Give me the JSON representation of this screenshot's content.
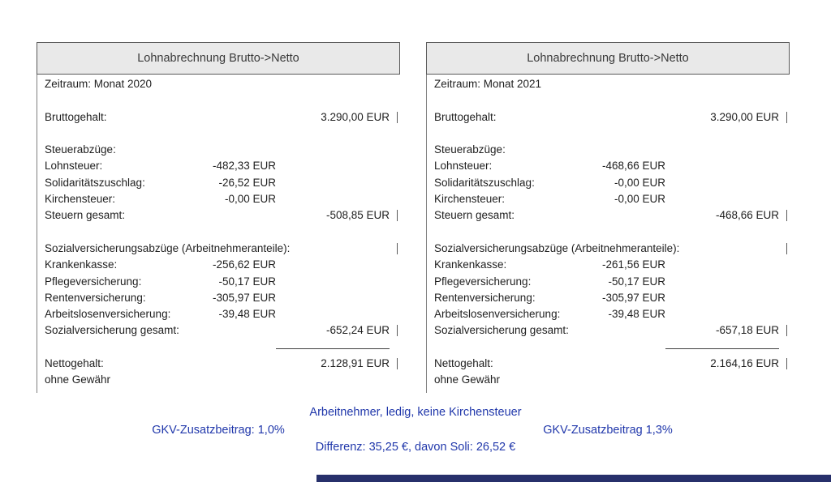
{
  "colors": {
    "accent_blue": "#2138ab",
    "bar_navy": "#27306b",
    "header_bg": "#e9e9e9",
    "border_gray": "#595959"
  },
  "panels": [
    {
      "title": "Lohnabrechnung Brutto->Netto",
      "rows": [
        {
          "label": "Zeitraum: Monat 2020"
        },
        {
          "spacer": true
        },
        {
          "label": "Bruttogehalt:",
          "total": "3.290,00 EUR",
          "tick": true
        },
        {
          "spacer": true
        },
        {
          "label": "Steuerabzüge:"
        },
        {
          "label": "Lohnsteuer:",
          "mid": "-482,33 EUR"
        },
        {
          "label": "Solidaritätszuschlag:",
          "mid": "-26,52 EUR"
        },
        {
          "label": "Kirchensteuer:",
          "mid": "-0,00 EUR"
        },
        {
          "label": "Steuern gesamt:",
          "total": "-508,85 EUR",
          "tick": true
        },
        {
          "spacer": true
        },
        {
          "label": "Sozialversicherungsabzüge (Arbeitnehmeranteile):",
          "tick": true
        },
        {
          "label": "Krankenkasse:",
          "mid": "-256,62 EUR"
        },
        {
          "label": "Pflegeversicherung:",
          "mid": "-50,17 EUR"
        },
        {
          "label": "Rentenversicherung:",
          "mid": "-305,97 EUR"
        },
        {
          "label": "Arbeitslosenversicherung:",
          "mid": "-39,48 EUR"
        },
        {
          "label": "Sozialversicherung gesamt:",
          "total": "-652,24 EUR",
          "tick": true
        },
        {
          "rule": true
        },
        {
          "label": "Nettogehalt:",
          "total": "2.128,91 EUR",
          "tick": true,
          "netto": true
        },
        {
          "label": "ohne Gewähr"
        }
      ]
    },
    {
      "title": "Lohnabrechnung Brutto->Netto",
      "rows": [
        {
          "label": "Zeitraum: Monat 2021"
        },
        {
          "spacer": true
        },
        {
          "label": "Bruttogehalt:",
          "total": "3.290,00 EUR",
          "tick": true
        },
        {
          "spacer": true
        },
        {
          "label": "Steuerabzüge:"
        },
        {
          "label": "Lohnsteuer:",
          "mid": "-468,66 EUR"
        },
        {
          "label": "Solidaritätszuschlag:",
          "mid": "-0,00 EUR"
        },
        {
          "label": "Kirchensteuer:",
          "mid": "-0,00 EUR"
        },
        {
          "label": "Steuern gesamt:",
          "total": "-468,66 EUR",
          "tick": true
        },
        {
          "spacer": true
        },
        {
          "label": "Sozialversicherungsabzüge (Arbeitnehmeranteile):",
          "tick": true
        },
        {
          "label": "Krankenkasse:",
          "mid": "-261,56 EUR"
        },
        {
          "label": "Pflegeversicherung:",
          "mid": "-50,17 EUR"
        },
        {
          "label": "Rentenversicherung:",
          "mid": "-305,97 EUR"
        },
        {
          "label": "Arbeitslosenversicherung:",
          "mid": "-39,48 EUR"
        },
        {
          "label": "Sozialversicherung gesamt:",
          "total": "-657,18 EUR",
          "tick": true
        },
        {
          "rule": true
        },
        {
          "label": "Nettogehalt:",
          "total": "2.164,16 EUR",
          "tick": true,
          "netto": true
        },
        {
          "label": "ohne Gewähr"
        }
      ]
    }
  ],
  "footer": {
    "scenario": "Arbeitnehmer, ledig, keine Kirchensteuer",
    "gkv_left": "GKV-Zusatzbeitrag: 1,0%",
    "gkv_right": "GKV-Zusatzbeitrag 1,3%",
    "difference": "Differenz: 35,25 €, davon Soli: 26,52 €"
  }
}
